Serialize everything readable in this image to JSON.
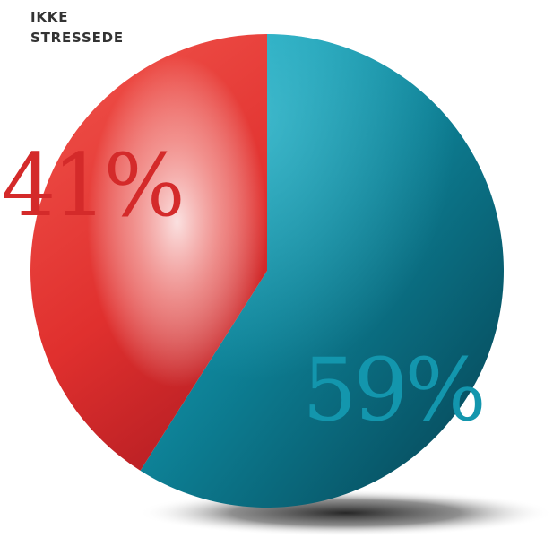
{
  "chart_data": {
    "type": "pie",
    "categories_label": [
      "IKKE",
      "STRESSEDE"
    ],
    "slices": [
      {
        "label": "",
        "value": 59,
        "text": "59%",
        "color": "#0f7f93"
      },
      {
        "label": "IKKE STRESSEDE",
        "value": 41,
        "text": "41%",
        "color": "#e03a36"
      }
    ]
  }
}
